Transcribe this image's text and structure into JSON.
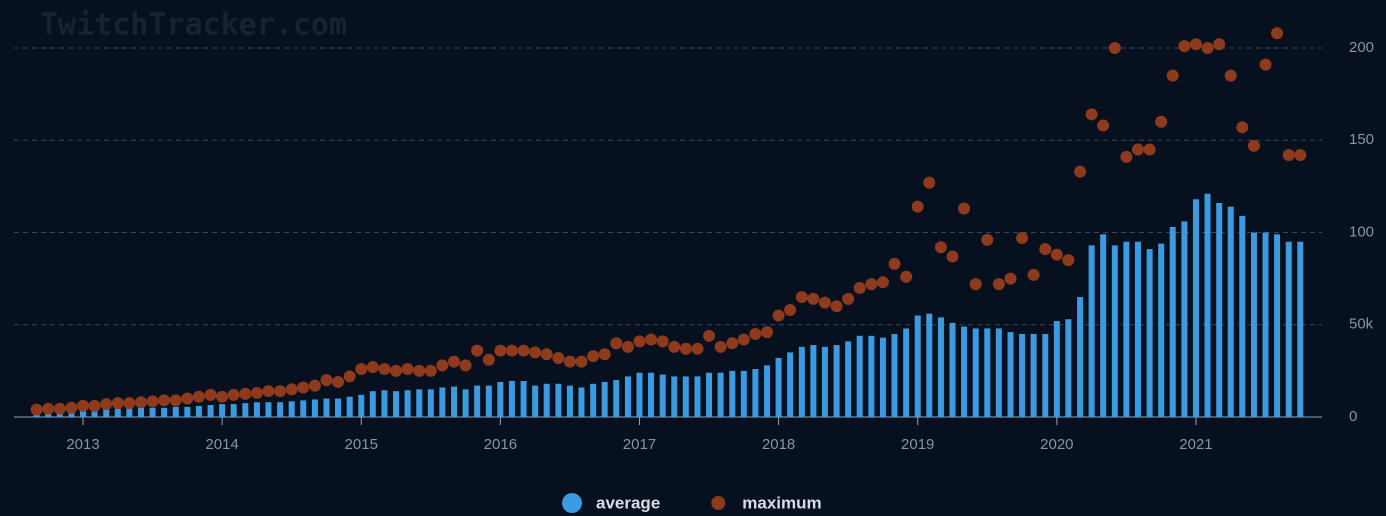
{
  "chart_data": {
    "type": "bar+scatter",
    "watermark": "TwitchTracker.com",
    "x": [
      2012.667,
      2012.75,
      2012.833,
      2012.917,
      2013,
      2013.083,
      2013.167,
      2013.25,
      2013.333,
      2013.417,
      2013.5,
      2013.583,
      2013.667,
      2013.75,
      2013.833,
      2013.917,
      2014,
      2014.083,
      2014.167,
      2014.25,
      2014.333,
      2014.417,
      2014.5,
      2014.583,
      2014.667,
      2014.75,
      2014.833,
      2014.917,
      2015,
      2015.083,
      2015.167,
      2015.25,
      2015.333,
      2015.417,
      2015.5,
      2015.583,
      2015.667,
      2015.75,
      2015.833,
      2015.917,
      2016,
      2016.083,
      2016.167,
      2016.25,
      2016.333,
      2016.417,
      2016.5,
      2016.583,
      2016.667,
      2016.75,
      2016.833,
      2016.917,
      2017,
      2017.083,
      2017.167,
      2017.25,
      2017.333,
      2017.417,
      2017.5,
      2017.583,
      2017.667,
      2017.75,
      2017.833,
      2017.917,
      2018,
      2018.083,
      2018.167,
      2018.25,
      2018.333,
      2018.417,
      2018.5,
      2018.583,
      2018.667,
      2018.75,
      2018.833,
      2018.917,
      2019,
      2019.083,
      2019.167,
      2019.25,
      2019.333,
      2019.417,
      2019.5,
      2019.583,
      2019.667,
      2019.75,
      2019.833,
      2019.917,
      2020,
      2020.083,
      2020.167,
      2020.25,
      2020.333,
      2020.417,
      2020.5,
      2020.583,
      2020.667,
      2020.75,
      2020.833,
      2020.917,
      2021,
      2021.083,
      2021.167,
      2021.25,
      2021.333,
      2021.417,
      2021.5,
      2021.583,
      2021.667,
      2021.75
    ],
    "series": [
      {
        "name": "average",
        "kind": "bar",
        "color": "#3b9be0",
        "values": [
          2000,
          2500,
          3000,
          3500,
          4000,
          4000,
          4500,
          4500,
          5000,
          5000,
          5000,
          5000,
          5500,
          5500,
          6000,
          6500,
          7000,
          7000,
          7500,
          8000,
          8000,
          8000,
          8500,
          9000,
          9500,
          10000,
          10000,
          11000,
          12000,
          14000,
          14500,
          14000,
          14500,
          15000,
          15000,
          16000,
          16500,
          15000,
          17000,
          17000,
          19000,
          19500,
          19500,
          17000,
          18000,
          18000,
          17000,
          16000,
          18000,
          19000,
          20000,
          22000,
          24000,
          24000,
          23000,
          22000,
          22000,
          22000,
          24000,
          24000,
          25000,
          25000,
          26000,
          28000,
          32000,
          35000,
          38000,
          39000,
          38000,
          39000,
          41000,
          44000,
          44000,
          43000,
          45000,
          48000,
          55000,
          56000,
          54000,
          51000,
          49000,
          48000,
          48000,
          48000,
          46000,
          45000,
          45000,
          45000,
          52000,
          53000,
          65000,
          93000,
          99000,
          93000,
          95000,
          95000,
          91000,
          94000,
          103000,
          106000,
          118000,
          121000,
          116000,
          114000,
          109000,
          100000,
          100000,
          99000,
          95000,
          95000
        ]
      },
      {
        "name": "maximum",
        "kind": "scatter",
        "color": "#8e3a1c",
        "values": [
          4000,
          4500,
          4500,
          5000,
          6000,
          6000,
          7000,
          7500,
          7500,
          8000,
          8500,
          9000,
          9000,
          10000,
          11000,
          12000,
          11000,
          12000,
          12500,
          13000,
          14000,
          14000,
          15000,
          16000,
          17000,
          20000,
          19000,
          22000,
          26000,
          27000,
          26000,
          25000,
          26000,
          25000,
          25000,
          28000,
          30000,
          28000,
          36000,
          31000,
          36000,
          36000,
          36000,
          35000,
          34000,
          32000,
          30000,
          30000,
          33000,
          34000,
          40000,
          38000,
          41000,
          42000,
          41000,
          38000,
          37000,
          37000,
          44000,
          38000,
          40000,
          42000,
          45000,
          46000,
          55000,
          58000,
          65000,
          64000,
          62000,
          60000,
          64000,
          70000,
          72000,
          73000,
          83000,
          76000,
          114000,
          127000,
          92000,
          87000,
          113000,
          72000,
          96000,
          72000,
          75000,
          97000,
          77000,
          91000,
          88000,
          85000,
          133000,
          164000,
          158000,
          200000,
          141000,
          145000,
          145000,
          160000,
          185000,
          201000,
          202000,
          200000,
          202000,
          185000,
          157000,
          147000,
          191000,
          208000,
          142000,
          142000
        ]
      }
    ],
    "xlim": [
      2012.504,
      2021.906
    ],
    "xticks": [
      2013,
      2014,
      2015,
      2016,
      2017,
      2018,
      2019,
      2020,
      2021
    ],
    "ylim": [
      0,
      215000
    ],
    "yticks": [
      0,
      {
        "value": 50000,
        "label": "50k"
      },
      {
        "value": 100000,
        "label": "100"
      },
      {
        "value": 150000,
        "label": "150"
      },
      {
        "value": 200000,
        "label": "200"
      }
    ],
    "grid": true,
    "legend": "bottom"
  }
}
